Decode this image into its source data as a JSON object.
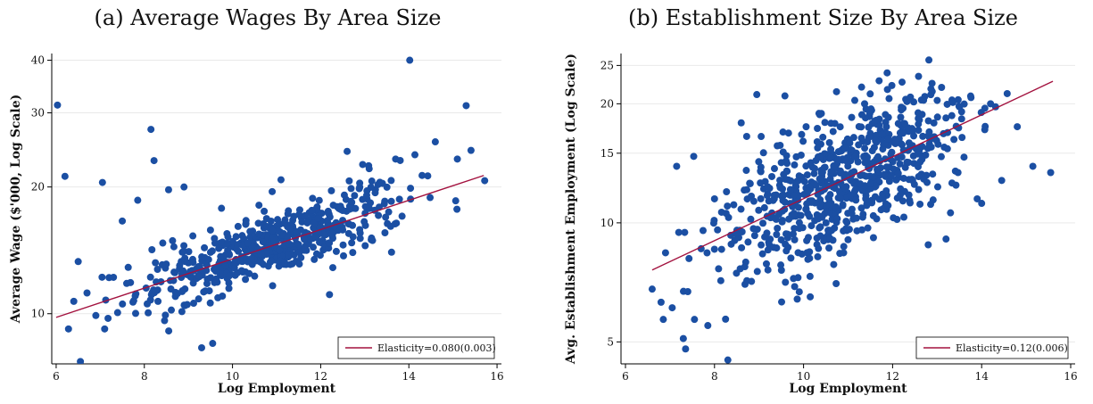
{
  "chart_data": [
    {
      "type": "scatter",
      "title": "(a) Average Wages By Area Size",
      "xlabel": "Log Employment",
      "ylabel": "Average Wage  ($'000, Log Scale)",
      "y_scale": "log",
      "xlim": [
        5.9,
        16.1
      ],
      "ylim": [
        7.6,
        41.5
      ],
      "x_ticks": [
        6,
        8,
        10,
        12,
        14,
        16
      ],
      "y_ticks": [
        10,
        20,
        30,
        40
      ],
      "grid": "horizontal",
      "legend_position": "bottom-right",
      "colors": {
        "points": "#1b4fa3",
        "fit": "#a3123f"
      },
      "fit_line": {
        "label": "Elasticity=0.080(0.003)",
        "x": [
          6.0,
          15.7
        ],
        "y": [
          9.8,
          21.3
        ]
      },
      "series": [
        {
          "x": [
            6.03,
            6.2,
            6.5,
            6.55,
            6.28,
            6.4,
            6.7,
            6.9,
            7.05,
            7.1,
            7.3,
            7.5,
            7.6,
            7.85,
            8.15,
            8.22,
            8.55,
            8.9,
            9.1,
            9.3,
            9.5,
            9.55,
            9.75,
            10.3,
            10.6,
            10.9,
            11.1,
            11.3,
            11.5,
            11.8,
            12.2,
            12.45,
            12.6,
            13.1,
            13.4,
            13.7,
            14.02,
            14.3,
            14.6,
            15.1,
            15.3,
            15.72
          ],
          "y": [
            31.3,
            21.2,
            13.3,
            7.7,
            9.2,
            10.7,
            11.2,
            9.9,
            20.5,
            9.2,
            12.2,
            16.6,
            11.8,
            18.6,
            27.4,
            23.1,
            19.7,
            20.0,
            15.3,
            8.3,
            15.8,
            8.5,
            17.8,
            16.3,
            18.1,
            19.5,
            20.8,
            15.9,
            14.6,
            17.6,
            11.1,
            18.0,
            24.3,
            22.1,
            20.4,
            23.3,
            40.0,
            21.3,
            25.6,
            23.3,
            31.2,
            20.7
          ]
        }
      ]
    },
    {
      "type": "scatter",
      "title": "(b) Establishment Size By Area Size",
      "xlabel": "Log Employment",
      "ylabel": "Avg. Establishment Employment  (Log Scale)",
      "y_scale": "log",
      "xlim": [
        5.9,
        16.1
      ],
      "ylim": [
        4.4,
        26.8
      ],
      "x_ticks": [
        6,
        8,
        10,
        12,
        14,
        16
      ],
      "y_ticks": [
        5,
        10,
        15,
        20,
        25
      ],
      "grid": "horizontal",
      "legend_position": "bottom-right",
      "colors": {
        "points": "#1b4fa3",
        "fit": "#a3123f"
      },
      "fit_line": {
        "label": "Elasticity=0.12(0.006)",
        "x": [
          6.6,
          15.6
        ],
        "y": [
          7.6,
          22.8
        ]
      },
      "series": [
        {
          "x": [
            6.6,
            6.8,
            6.85,
            6.9,
            7.05,
            7.15,
            7.3,
            7.35,
            7.4,
            7.55,
            7.7,
            7.85,
            8.0,
            8.3,
            8.6,
            8.95,
            9.2,
            9.5,
            9.8,
            10.15,
            10.4,
            10.6,
            10.9,
            11.15,
            11.3,
            11.6,
            11.9,
            12.1,
            12.4,
            12.7,
            13.1,
            13.3,
            13.55,
            13.9,
            14.2,
            14.45,
            14.8,
            15.15,
            15.55,
            14.0,
            13.2,
            12.8
          ],
          "y": [
            6.8,
            6.3,
            5.7,
            8.4,
            6.1,
            13.9,
            5.1,
            4.8,
            6.7,
            5.7,
            8.6,
            5.5,
            11.5,
            4.5,
            17.9,
            21.1,
            7.6,
            14.2,
            6.9,
            6.5,
            18.9,
            12.9,
            8.4,
            20.4,
            10.9,
            18.1,
            16.3,
            10.2,
            20.8,
            12.9,
            22.0,
            10.6,
            19.1,
            11.5,
            20.0,
            12.8,
            17.5,
            13.9,
            13.4,
            11.2,
            9.1,
            8.8
          ]
        }
      ]
    }
  ]
}
